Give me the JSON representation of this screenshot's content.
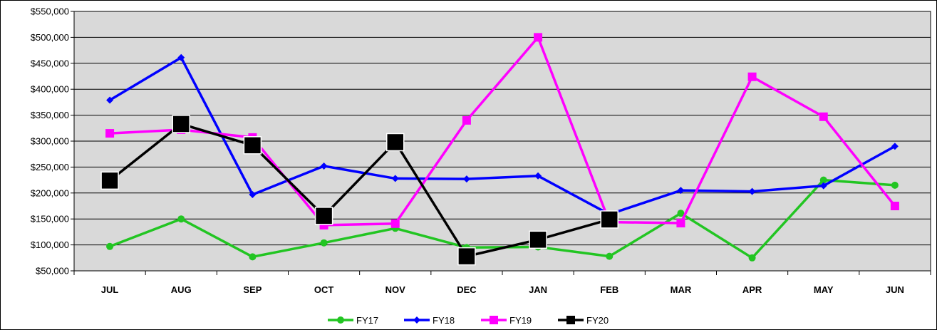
{
  "chart_data": {
    "type": "line",
    "categories": [
      "JUL",
      "AUG",
      "SEP",
      "OCT",
      "NOV",
      "DEC",
      "JAN",
      "FEB",
      "MAR",
      "APR",
      "MAY",
      "JUN"
    ],
    "ylim": [
      50000,
      550000
    ],
    "yticks": [
      50000,
      100000,
      150000,
      200000,
      250000,
      300000,
      350000,
      400000,
      450000,
      500000,
      550000
    ],
    "ytick_labels": [
      "$50,000",
      "$100,000",
      "$150,000",
      "$200,000",
      "$250,000",
      "$300,000",
      "$350,000",
      "$400,000",
      "$450,000",
      "$500,000",
      "$550,000"
    ],
    "grid": "horizontal",
    "legend_position": "bottom",
    "plot_background": "#d9d9d9",
    "series": [
      {
        "name": "FY17",
        "color": "#22c522",
        "marker": "circle",
        "values": [
          97000,
          150000,
          77000,
          104000,
          132000,
          95000,
          96000,
          78000,
          161000,
          75000,
          225000,
          215000
        ]
      },
      {
        "name": "FY18",
        "color": "#0000ff",
        "marker": "diamond",
        "values": [
          379000,
          461000,
          197000,
          252000,
          228000,
          227000,
          233000,
          159000,
          205000,
          203000,
          214000,
          290000
        ]
      },
      {
        "name": "FY19",
        "color": "#ff00ff",
        "marker": "square",
        "values": [
          315000,
          322000,
          307000,
          138000,
          141000,
          340000,
          500000,
          144000,
          142000,
          424000,
          347000,
          175000
        ]
      },
      {
        "name": "FY20",
        "color": "#000000",
        "marker": "square-large",
        "values": [
          224000,
          333000,
          292000,
          156000,
          298000,
          78000,
          110000,
          149000,
          null,
          null,
          null,
          null
        ]
      }
    ]
  }
}
